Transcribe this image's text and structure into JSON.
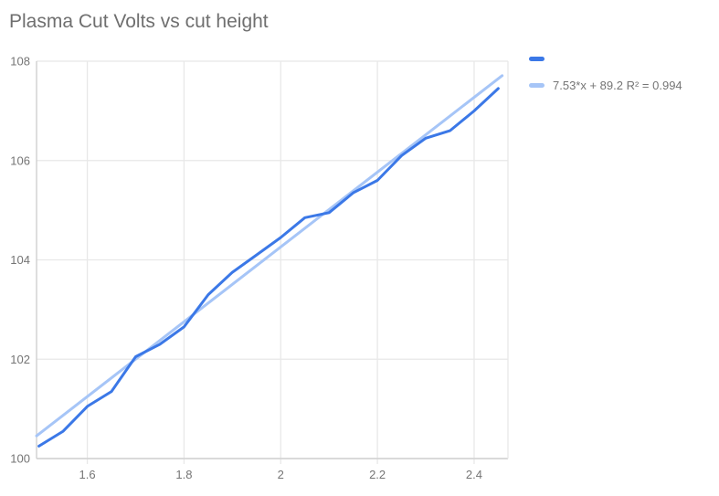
{
  "title": "Plasma Cut Volts vs cut height",
  "colors": {
    "series": "#3b78e7",
    "trendline": "#a6c5f7",
    "gridline": "#e8e8e8",
    "axis": "#cccccc",
    "title_text": "#6f6f6f",
    "tick_text": "#757575",
    "background": "#ffffff"
  },
  "legend": [
    {
      "label": "",
      "color": "#3b78e7"
    },
    {
      "label": "7.53*x + 89.2 R² = 0.994",
      "color": "#a6c5f7"
    }
  ],
  "chart_data": {
    "type": "line",
    "title": "Plasma Cut Volts vs cut height",
    "xlabel": "",
    "ylabel": "",
    "grid": true,
    "legend_position": "right",
    "xlim": [
      1.495,
      2.47
    ],
    "ylim": [
      100,
      108
    ],
    "x_ticks": [
      1.6,
      1.8,
      2.0,
      2.2,
      2.4
    ],
    "x_tick_labels": [
      "1.6",
      "1.8",
      "2",
      "2.2",
      "2.4"
    ],
    "y_ticks": [
      100,
      102,
      104,
      106,
      108
    ],
    "y_tick_labels": [
      "100",
      "102",
      "104",
      "106",
      "108"
    ],
    "series": [
      {
        "name": "Plasma Cut Volts",
        "color": "#3b78e7",
        "x": [
          1.5,
          1.55,
          1.6,
          1.65,
          1.7,
          1.75,
          1.8,
          1.85,
          1.9,
          1.95,
          2.0,
          2.05,
          2.1,
          2.15,
          2.2,
          2.25,
          2.3,
          2.35,
          2.4,
          2.45
        ],
        "y": [
          100.25,
          100.55,
          101.05,
          101.35,
          102.05,
          102.3,
          102.65,
          103.3,
          103.75,
          104.1,
          104.45,
          104.85,
          104.95,
          105.35,
          105.6,
          106.1,
          106.45,
          106.6,
          107.0,
          107.45
        ]
      },
      {
        "name": "trendline",
        "label": "7.53*x + 89.2 R² = 0.994",
        "color": "#a6c5f7",
        "equation": {
          "slope": 7.53,
          "intercept": 89.2,
          "r2": 0.994,
          "text": "7.53*x + 89.2 R² = 0.994"
        },
        "x_range": [
          1.495,
          2.458
        ]
      }
    ]
  }
}
